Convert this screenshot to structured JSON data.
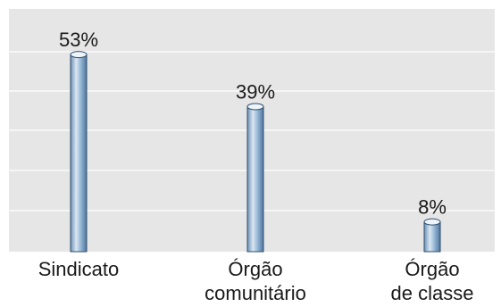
{
  "chart_data": {
    "type": "bar",
    "categories": [
      [
        "Sindicato"
      ],
      [
        "Órgão",
        "comunitário"
      ],
      [
        "Órgão",
        "de classe"
      ]
    ],
    "values": [
      53,
      39,
      8
    ],
    "value_labels": [
      "53%",
      "39%",
      "8%"
    ],
    "ylim": [
      0,
      60
    ],
    "grid": true,
    "legend": "none",
    "colors": {
      "plot_background": "#e6e6e6",
      "gridline": "#f5f5f5",
      "bar_light": "#dbe7f2",
      "bar_mid": "#8fb2d0",
      "bar_dark": "#5b82a8",
      "bar_outline": "#2f4f6f"
    }
  }
}
